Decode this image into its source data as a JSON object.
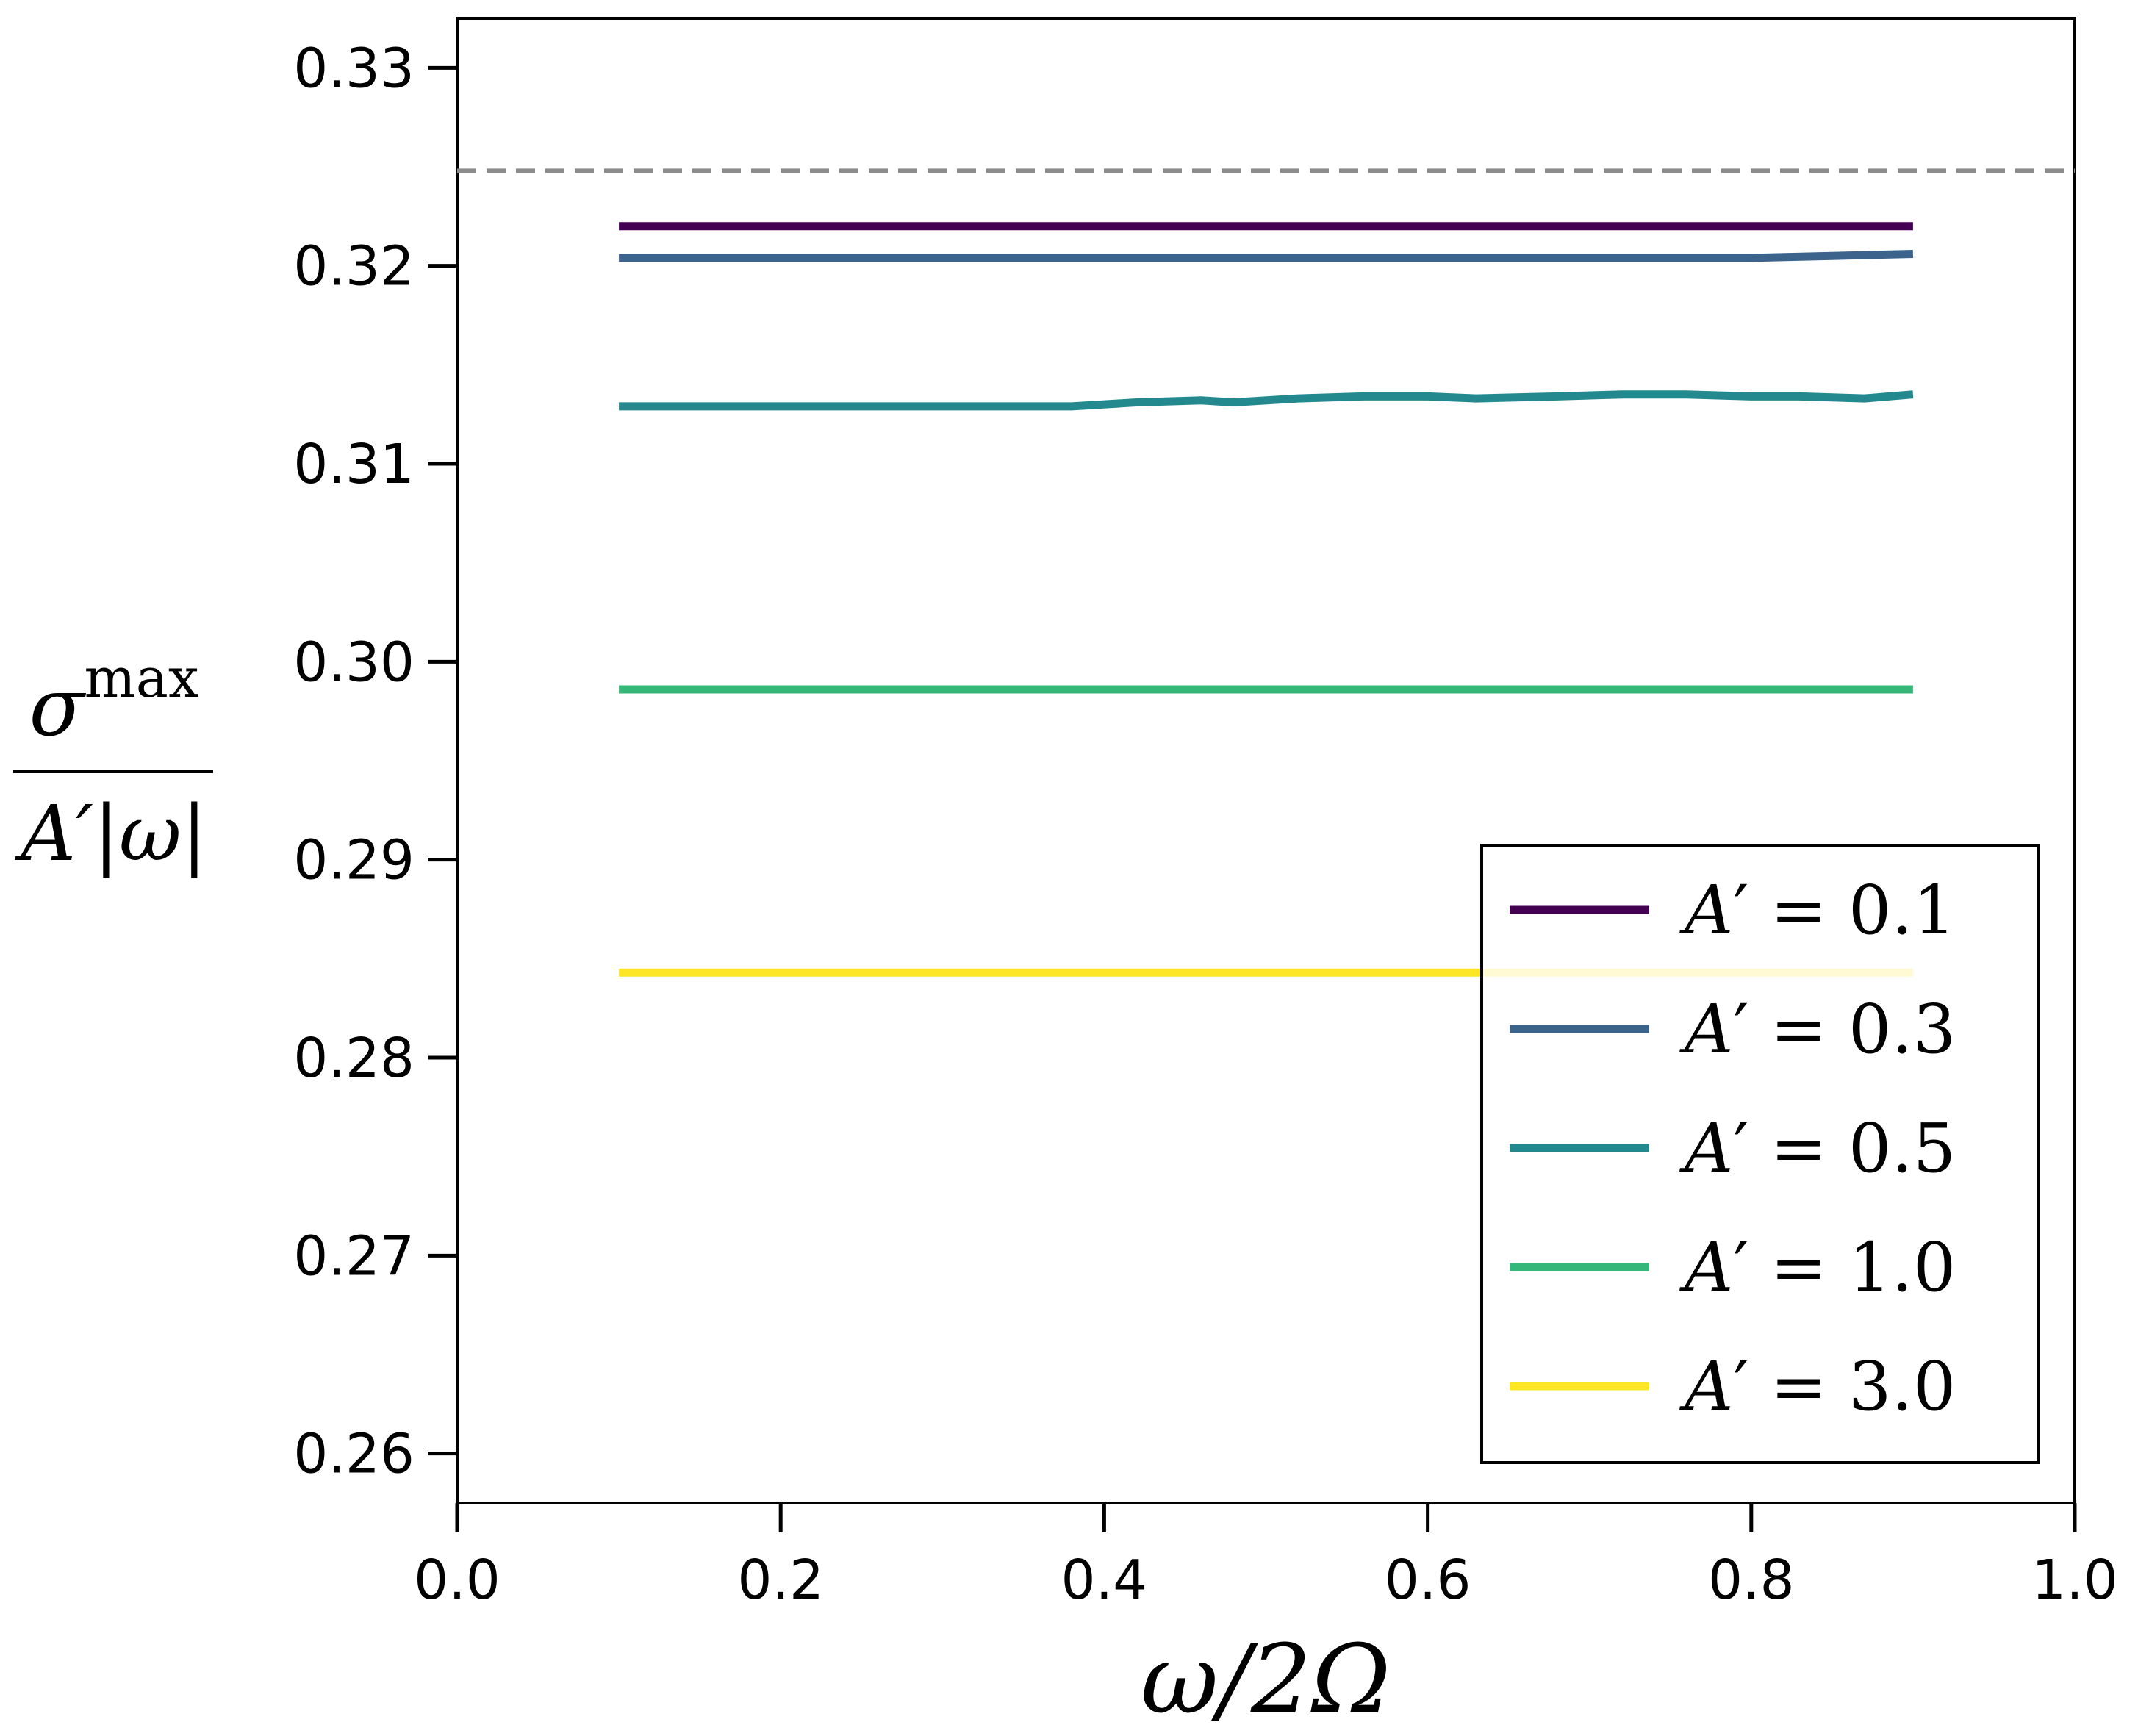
{
  "chart_data": {
    "type": "line",
    "title": "",
    "xlabel": "ω/2Ω",
    "ylabel": {
      "numerator": "σ",
      "numerator_sup": "max",
      "denominator": "A′|ω|"
    },
    "xlim": [
      0.0,
      1.0
    ],
    "ylim": [
      0.2575,
      0.3325
    ],
    "xticks": [
      "0.0",
      "0.2",
      "0.4",
      "0.6",
      "0.8",
      "1.0"
    ],
    "yticks": [
      "0.26",
      "0.27",
      "0.28",
      "0.29",
      "0.30",
      "0.31",
      "0.32",
      "0.33"
    ],
    "grid": false,
    "legend_position": "lower-right",
    "reference_line": {
      "y": 0.3248,
      "style": "dashed",
      "color": "#8c8c8c"
    },
    "series": [
      {
        "name": "A′ = 0.1",
        "color": "#440154",
        "x": [
          0.1,
          0.2,
          0.3,
          0.4,
          0.5,
          0.6,
          0.7,
          0.8,
          0.9
        ],
        "y": [
          0.322,
          0.322,
          0.322,
          0.322,
          0.322,
          0.322,
          0.322,
          0.322,
          0.322
        ]
      },
      {
        "name": "A′ = 0.3",
        "color": "#3b638c",
        "x": [
          0.1,
          0.2,
          0.3,
          0.4,
          0.5,
          0.6,
          0.7,
          0.8,
          0.85,
          0.9
        ],
        "y": [
          0.3204,
          0.3204,
          0.3204,
          0.3204,
          0.3204,
          0.3204,
          0.3204,
          0.3204,
          0.3205,
          0.3206
        ]
      },
      {
        "name": "A′ = 0.5",
        "color": "#23898e",
        "x": [
          0.1,
          0.2,
          0.3,
          0.38,
          0.42,
          0.46,
          0.48,
          0.52,
          0.56,
          0.6,
          0.63,
          0.68,
          0.72,
          0.76,
          0.8,
          0.83,
          0.87,
          0.9
        ],
        "y": [
          0.3129,
          0.3129,
          0.3129,
          0.3129,
          0.3131,
          0.3132,
          0.3131,
          0.3133,
          0.3134,
          0.3134,
          0.3133,
          0.3134,
          0.3135,
          0.3135,
          0.3134,
          0.3134,
          0.3133,
          0.3135
        ]
      },
      {
        "name": "A′ = 1.0",
        "color": "#35b779",
        "x": [
          0.1,
          0.2,
          0.3,
          0.4,
          0.5,
          0.6,
          0.7,
          0.8,
          0.9
        ],
        "y": [
          0.2986,
          0.2986,
          0.2986,
          0.2986,
          0.2986,
          0.2986,
          0.2986,
          0.2986,
          0.2986
        ]
      },
      {
        "name": "A′ = 3.0",
        "color": "#fde725",
        "x": [
          0.1,
          0.2,
          0.3,
          0.4,
          0.5,
          0.6,
          0.7,
          0.8,
          0.9
        ],
        "y": [
          0.2843,
          0.2843,
          0.2843,
          0.2843,
          0.2843,
          0.2843,
          0.2843,
          0.2843,
          0.2843
        ]
      }
    ],
    "legend": {
      "entries": [
        {
          "prefix": "A",
          "prime": "′",
          "rest": " = 0.1"
        },
        {
          "prefix": "A",
          "prime": "′",
          "rest": " = 0.3"
        },
        {
          "prefix": "A",
          "prime": "′",
          "rest": " = 0.5"
        },
        {
          "prefix": "A",
          "prime": "′",
          "rest": " = 1.0"
        },
        {
          "prefix": "A",
          "prime": "′",
          "rest": " = 3.0"
        }
      ]
    }
  }
}
